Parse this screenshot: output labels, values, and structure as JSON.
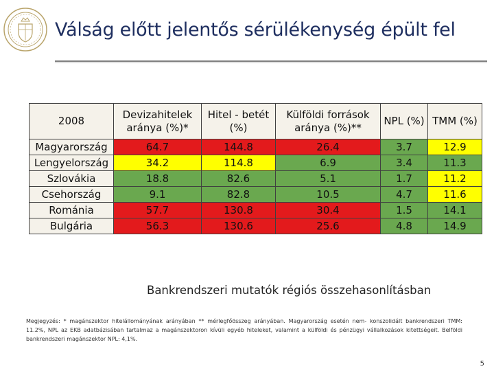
{
  "slide": {
    "title": "Válság előtt jelentős sérülékenység épült fel",
    "caption": "Bankrendszeri mutatók régiós összehasonlításban",
    "footnote": "Megjegyzés: * magánszektor hitelállományának arányában ** mérlegfőösszeg arányában. Magyarország esetén nem- konszolidált bankrendszeri TMM: 11.2%, NPL az EKB adatbázisában tartalmaz a magánszektoron kívüli egyéb hiteleket, valamint a külföldi és pénzügyi vállalkozások kitettségeit. Belföldi bankrendszeri magánszektor NPL: 4,1%.",
    "page_number": "5"
  },
  "table": {
    "headers": [
      "2008",
      "Devizahitelek aránya (%)*",
      "Hitel - betét (%)",
      "Külföldi források aránya (%)**",
      "NPL (%)",
      "TMM (%)"
    ],
    "rows": [
      {
        "country": "Magyarország",
        "values": [
          "64.7",
          "144.8",
          "26.4",
          "3.7",
          "12.9"
        ],
        "colors": [
          "red",
          "red",
          "red",
          "green",
          "yellow"
        ]
      },
      {
        "country": "Lengyelország",
        "values": [
          "34.2",
          "114.8",
          "6.9",
          "3.4",
          "11.3"
        ],
        "colors": [
          "yellow",
          "yellow",
          "green",
          "green",
          "green"
        ]
      },
      {
        "country": "Szlovákia",
        "values": [
          "18.8",
          "82.6",
          "5.1",
          "1.7",
          "11.2"
        ],
        "colors": [
          "green",
          "green",
          "green",
          "green",
          "yellow"
        ]
      },
      {
        "country": "Csehország",
        "values": [
          "9.1",
          "82.8",
          "10.5",
          "4.7",
          "11.6"
        ],
        "colors": [
          "green",
          "green",
          "green",
          "green",
          "yellow"
        ]
      },
      {
        "country": "Románia",
        "values": [
          "57.7",
          "130.8",
          "30.4",
          "1.5",
          "14.1"
        ],
        "colors": [
          "red",
          "red",
          "red",
          "green",
          "green"
        ]
      },
      {
        "country": "Bulgária",
        "values": [
          "56.3",
          "130.6",
          "25.6",
          "4.8",
          "14.9"
        ],
        "colors": [
          "red",
          "red",
          "red",
          "green",
          "green"
        ]
      }
    ],
    "color_map": {
      "red": "#e31a1c",
      "yellow": "#ffff00",
      "green": "#6aa84f"
    }
  },
  "logo": {
    "icon": "central-bank-seal-icon"
  }
}
